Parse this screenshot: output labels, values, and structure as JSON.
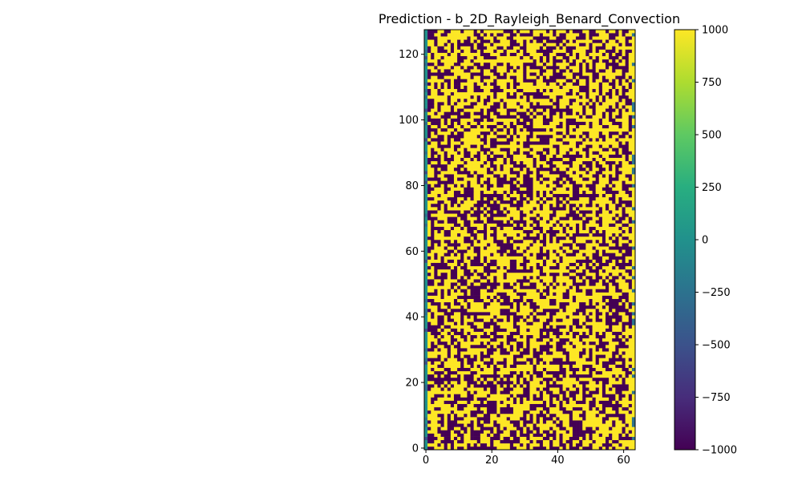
{
  "chart_data": {
    "type": "heatmap",
    "title": "Prediction - b_2D_Rayleigh_Benard_Convection",
    "xlabel": "",
    "ylabel": "",
    "grid_shape": {
      "cols": 64,
      "rows": 128
    },
    "xlim": [
      -0.5,
      63.5
    ],
    "ylim": [
      -0.5,
      127.5
    ],
    "x_ticks": [
      0,
      20,
      40,
      60
    ],
    "y_ticks": [
      0,
      20,
      40,
      60,
      80,
      100,
      120
    ],
    "value_range": [
      -1000,
      1000
    ],
    "colormap": "viridis",
    "colorbar": {
      "ticks": [
        1000,
        750,
        500,
        250,
        0,
        -250,
        -500,
        -750,
        -1000
      ],
      "tick_labels": [
        "1000",
        "750",
        "500",
        "250",
        "0",
        "−250",
        "−500",
        "−750",
        "−1000"
      ]
    },
    "columns": {
      "0": "mostly 0 (teal) with scattered values near +1000 and -1000",
      "1-62": "random binary field of -1000 (dark purple) and +1000 (yellow)",
      "63": "mostly +1000 (yellow) with some -1000 cells"
    },
    "seed_note": "pixel pattern approximated"
  }
}
